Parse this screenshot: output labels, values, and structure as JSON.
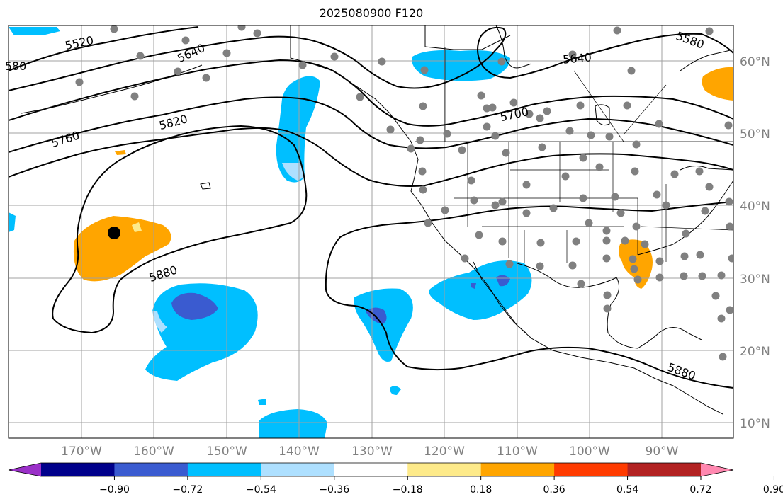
{
  "title": "2025080900 F120",
  "map": {
    "lon_labels": [
      "170°W",
      "160°W",
      "150°W",
      "140°W",
      "130°W",
      "120°W",
      "110°W",
      "100°W",
      "90°W"
    ],
    "lat_labels": [
      "60°N",
      "50°N",
      "40°N",
      "30°N",
      "20°N",
      "10°N"
    ],
    "contour_labels": [
      "5520",
      "5640",
      "5640",
      "5580",
      "5700",
      "5760",
      "5820",
      "5880",
      "5880",
      "580"
    ],
    "colors": {
      "contour": "#000000",
      "grid": "#a0a0a0",
      "station_dot": "#808080",
      "marker_dot": "#000000",
      "land_outline": "#000000"
    }
  },
  "colorbar": {
    "ticks": [
      "−0.90",
      "−0.72",
      "−0.54",
      "−0.36",
      "−0.18",
      "0.18",
      "0.36",
      "0.54",
      "0.72",
      "0.90"
    ],
    "colors": [
      "#9a30c8",
      "#00008b",
      "#3a5bd0",
      "#00bfff",
      "#aee0ff",
      "#ffffff",
      "#fdea8a",
      "#ffa500",
      "#ff3b00",
      "#b22222",
      "#ff88b0"
    ]
  }
}
